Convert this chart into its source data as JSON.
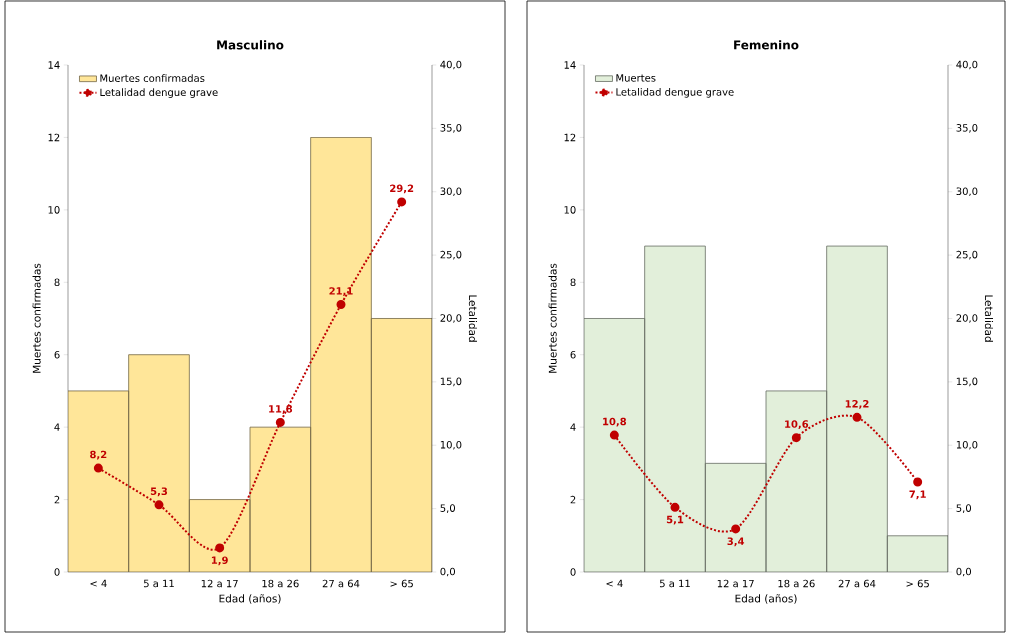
{
  "chart_data": [
    {
      "type": "bar",
      "title": "Masculino",
      "xlabel": "Edad (años)",
      "ylabel": "Muertes confirmadas",
      "y2label": "Letalidad",
      "categories": [
        "< 4",
        "5 a 11",
        "12 a 17",
        "18 a 26",
        "27 a 64",
        "> 65"
      ],
      "series": [
        {
          "name": "Muertes confirmadas",
          "color": "#ffe699",
          "values": [
            5,
            6,
            2,
            4,
            12,
            7
          ]
        },
        {
          "name": "Letalidad dengue grave",
          "type": "line",
          "axis": "y2",
          "color": "#c00000",
          "marker": "circle",
          "line_style": "dotted",
          "values": [
            8.2,
            5.3,
            1.9,
            11.8,
            21.1,
            29.2
          ],
          "value_labels": [
            "8,2",
            "5,3",
            "1,9",
            "11,8",
            "21,1",
            "29,2"
          ]
        }
      ],
      "ylim": [
        0,
        14
      ],
      "yticks": [
        0,
        2,
        4,
        6,
        8,
        10,
        12,
        14
      ],
      "y2lim": [
        0,
        40
      ],
      "y2ticks": [
        {
          "value": 0,
          "label": "0,0"
        },
        {
          "value": 5,
          "label": "5,0"
        },
        {
          "value": 10,
          "label": "10,0"
        },
        {
          "value": 15,
          "label": "15,0"
        },
        {
          "value": 20,
          "label": "20,0"
        },
        {
          "value": 25,
          "label": "25,0"
        },
        {
          "value": 30,
          "label": "30,0"
        },
        {
          "value": 35,
          "label": "35,0"
        },
        {
          "value": 40,
          "label": "40,0"
        }
      ],
      "legend": "top left",
      "grid": false
    },
    {
      "type": "bar",
      "title": "Femenino",
      "xlabel": "Edad (años)",
      "ylabel": "Muertes confirmadas",
      "y2label": "Letalidad",
      "categories": [
        "< 4",
        "5 a 11",
        "12 a 17",
        "18 a 26",
        "27 a 64",
        "> 65"
      ],
      "series": [
        {
          "name": "Muertes",
          "color": "#e2efda",
          "values": [
            7,
            9,
            3,
            5,
            9,
            1
          ]
        },
        {
          "name": "Letalidad dengue grave",
          "type": "line",
          "axis": "y2",
          "color": "#c00000",
          "marker": "circle",
          "line_style": "dotted",
          "values": [
            10.8,
            5.1,
            3.4,
            10.6,
            12.2,
            7.1
          ],
          "value_labels": [
            "10,8",
            "5,1",
            "3,4",
            "10,6",
            "12,2",
            "7,1"
          ]
        }
      ],
      "ylim": [
        0,
        14
      ],
      "yticks": [
        0,
        2,
        4,
        6,
        8,
        10,
        12,
        14
      ],
      "y2lim": [
        0,
        40
      ],
      "y2ticks": [
        {
          "value": 0,
          "label": "0,0"
        },
        {
          "value": 5,
          "label": "5,0"
        },
        {
          "value": 10,
          "label": "10,0"
        },
        {
          "value": 15,
          "label": "15,0"
        },
        {
          "value": 20,
          "label": "20,0"
        },
        {
          "value": 25,
          "label": "25,0"
        },
        {
          "value": 30,
          "label": "30,0"
        },
        {
          "value": 35,
          "label": "35,0"
        },
        {
          "value": 40,
          "label": "40,0"
        }
      ],
      "legend": "top left",
      "grid": false
    }
  ]
}
